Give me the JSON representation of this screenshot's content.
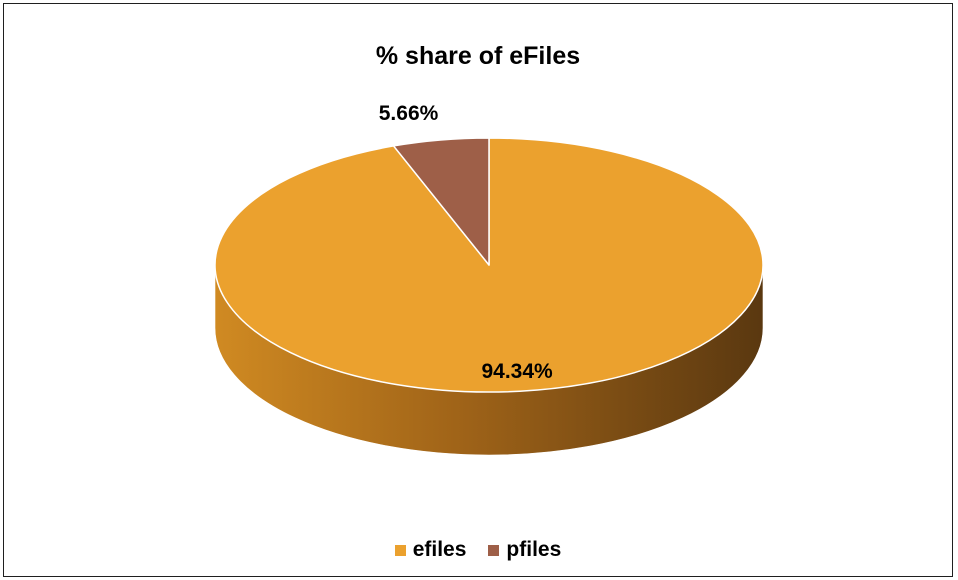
{
  "chart_data": {
    "type": "pie",
    "style": "3d",
    "title": "% share of eFiles",
    "categories": [
      "efiles",
      "pfiles"
    ],
    "values": [
      94.34,
      5.66
    ],
    "data_labels": [
      "94.34%",
      "5.66%"
    ],
    "colors": [
      "#EBA12E",
      "#9E5F48"
    ],
    "legend": {
      "position": "bottom",
      "entries": [
        "efiles",
        "pfiles"
      ]
    }
  }
}
